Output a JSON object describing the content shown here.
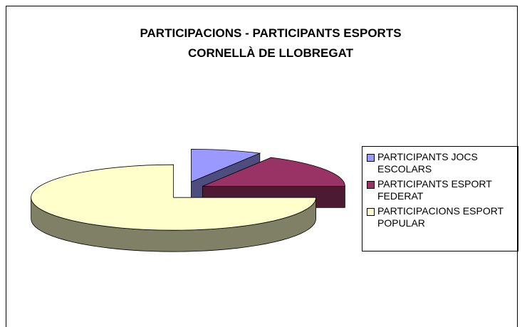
{
  "chart_data": {
    "type": "pie",
    "title": [
      "PARTICIPACIONS - PARTICIPANTS ESPORTS",
      "CORNELLÀ DE LLOBREGAT"
    ],
    "categories": [
      "PARTICIPANTS JOCS ESCOLARS",
      "PARTICIPANTS ESPORT FEDERAT",
      "PARTICIPACIONS ESPORT POPULAR"
    ],
    "values": [
      8,
      17,
      75
    ],
    "colors": [
      "#9999ff",
      "#993366",
      "#ffffcc"
    ],
    "legend": "right"
  }
}
